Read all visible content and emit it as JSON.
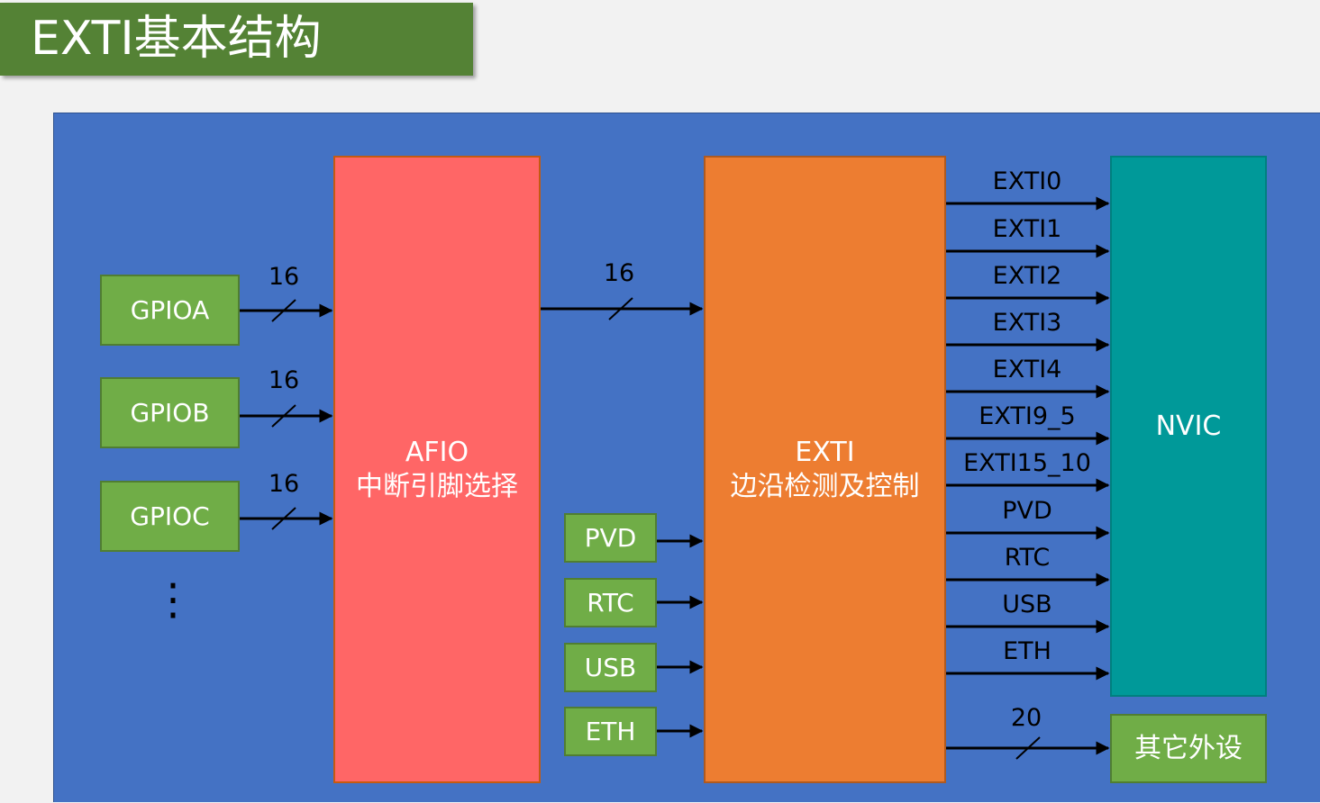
{
  "title": "EXTI基本结构",
  "sources": {
    "gpio": [
      "GPIOA",
      "GPIOB",
      "GPIOC"
    ],
    "ellipsis": "⋮",
    "bus_labels": [
      "16",
      "16",
      "16"
    ]
  },
  "afio": {
    "line1": "AFIO",
    "line2": "中断引脚选择"
  },
  "afio_to_exti_label": "16",
  "direct_sources": [
    "PVD",
    "RTC",
    "USB",
    "ETH"
  ],
  "exti": {
    "line1": "EXTI",
    "line2": "边沿检测及控制"
  },
  "outputs": [
    "EXTI0",
    "EXTI1",
    "EXTI2",
    "EXTI3",
    "EXTI4",
    "EXTI9_5",
    "EXTI15_10",
    "PVD",
    "RTC",
    "USB",
    "ETH"
  ],
  "nvic": {
    "label": "NVIC"
  },
  "other_peripherals": {
    "label": "其它外设",
    "bus_label": "20"
  },
  "colors": {
    "title_bg": "#548235",
    "diagram_bg": "#4472c4",
    "green_block": "#70ad47",
    "afio_block": "#ff6666",
    "exti_block": "#ed7d31",
    "nvic_block": "#009999"
  }
}
